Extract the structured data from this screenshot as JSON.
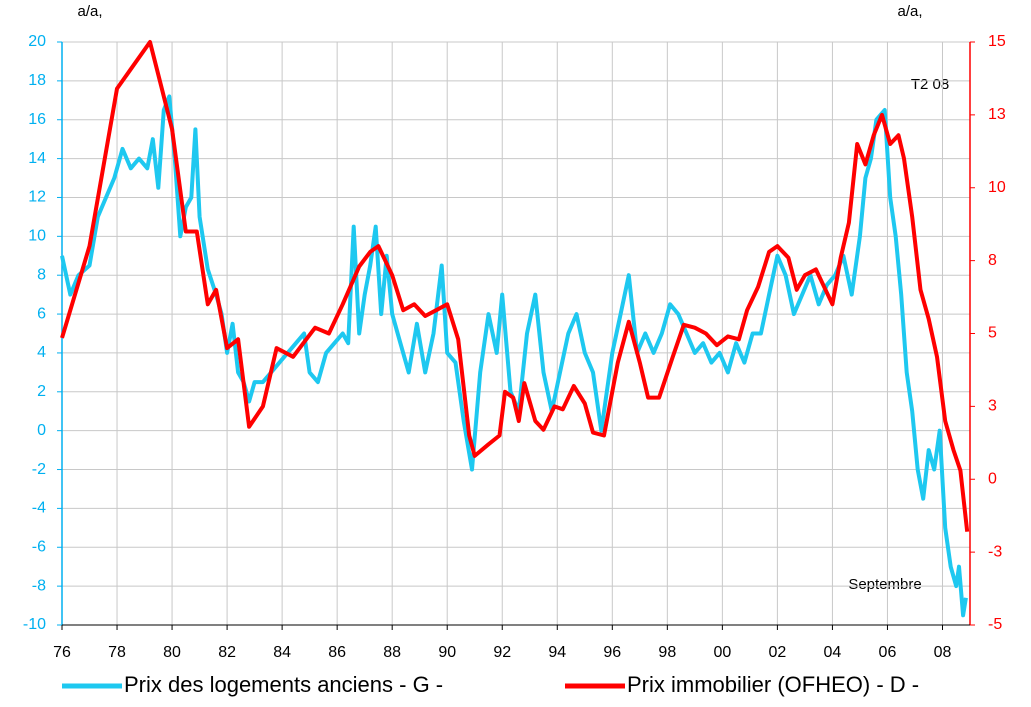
{
  "chart_data": {
    "type": "line",
    "annotations": [
      "a/a,",
      "a/a,",
      "T2 08",
      "Septembre"
    ],
    "xlim": [
      1976,
      2009
    ],
    "xticks": [
      {
        "value": 1976,
        "label": "76"
      },
      {
        "value": 1978,
        "label": "78"
      },
      {
        "value": 1980,
        "label": "80"
      },
      {
        "value": 1982,
        "label": "82"
      },
      {
        "value": 1984,
        "label": "84"
      },
      {
        "value": 1986,
        "label": "86"
      },
      {
        "value": 1988,
        "label": "88"
      },
      {
        "value": 1990,
        "label": "90"
      },
      {
        "value": 1992,
        "label": "92"
      },
      {
        "value": 1994,
        "label": "94"
      },
      {
        "value": 1996,
        "label": "96"
      },
      {
        "value": 1998,
        "label": "98"
      },
      {
        "value": 2000,
        "label": "00"
      },
      {
        "value": 2002,
        "label": "02"
      },
      {
        "value": 2004,
        "label": "04"
      },
      {
        "value": 2006,
        "label": "06"
      },
      {
        "value": 2008,
        "label": "08"
      }
    ],
    "ylim": [
      -10,
      20
    ],
    "yticks": [
      -10,
      -8,
      -6,
      -4,
      -2,
      0,
      2,
      4,
      6,
      8,
      10,
      12,
      14,
      16,
      18,
      20
    ],
    "y2lim": [
      -5,
      15
    ],
    "y2ticks": [
      -5,
      {
        "value": -2.5,
        "label": "-3"
      },
      0,
      {
        "value": 2.5,
        "label": "3"
      },
      5,
      {
        "value": 7.5,
        "label": "8"
      },
      10,
      {
        "value": 12.5,
        "label": "13"
      },
      15
    ],
    "grid": true,
    "legend": "bottom",
    "series": [
      {
        "name": "Prix des logements anciens - G -",
        "color": "#1ec8f0",
        "axis": "y",
        "x": [
          1976.0,
          1976.3,
          1976.6,
          1977.0,
          1977.3,
          1977.6,
          1977.9,
          1978.2,
          1978.5,
          1978.8,
          1979.1,
          1979.3,
          1979.5,
          1979.7,
          1979.9,
          1980.1,
          1980.3,
          1980.5,
          1980.7,
          1980.85,
          1981.0,
          1981.3,
          1981.6,
          1981.8,
          1982.0,
          1982.2,
          1982.4,
          1982.6,
          1982.8,
          1983.0,
          1983.3,
          1983.6,
          1983.9,
          1984.2,
          1984.5,
          1984.8,
          1985.0,
          1985.3,
          1985.6,
          1985.9,
          1986.2,
          1986.4,
          1986.6,
          1986.8,
          1987.0,
          1987.2,
          1987.4,
          1987.6,
          1987.8,
          1988.0,
          1988.3,
          1988.6,
          1988.9,
          1989.2,
          1989.5,
          1989.8,
          1990.0,
          1990.3,
          1990.6,
          1990.9,
          1991.2,
          1991.5,
          1991.8,
          1992.0,
          1992.3,
          1992.6,
          1992.9,
          1993.2,
          1993.5,
          1993.8,
          1994.1,
          1994.4,
          1994.7,
          1995.0,
          1995.3,
          1995.6,
          1996.0,
          1996.3,
          1996.6,
          1996.9,
          1997.2,
          1997.5,
          1997.8,
          1998.1,
          1998.4,
          1998.7,
          1999.0,
          1999.3,
          1999.6,
          1999.9,
          2000.2,
          2000.5,
          2000.8,
          2001.1,
          2001.4,
          2001.7,
          2002.0,
          2002.3,
          2002.6,
          2002.9,
          2003.2,
          2003.5,
          2003.8,
          2004.1,
          2004.4,
          2004.7,
          2005.0,
          2005.2,
          2005.4,
          2005.6,
          2005.9,
          2006.1,
          2006.3,
          2006.5,
          2006.7,
          2006.9,
          2007.1,
          2007.3,
          2007.5,
          2007.7,
          2007.9,
          2008.1,
          2008.3,
          2008.5,
          2008.6,
          2008.75,
          2008.85
        ],
        "values": [
          9,
          7,
          8,
          8.5,
          11,
          12,
          13,
          14.5,
          13.5,
          14,
          13.5,
          15,
          12.5,
          16.5,
          17.2,
          14,
          10,
          11.5,
          12,
          15.5,
          11,
          8.3,
          7,
          6,
          4,
          5.5,
          3,
          2.5,
          1.5,
          2.5,
          2.5,
          3,
          3.5,
          4,
          4.5,
          5,
          3,
          2.5,
          4,
          4.5,
          5,
          4.5,
          10.5,
          5,
          7,
          8.5,
          10.5,
          6,
          9,
          6,
          4.5,
          3,
          5.5,
          3,
          5,
          8.5,
          4,
          3.5,
          0.5,
          -2,
          3,
          6,
          4,
          7,
          2,
          1,
          5,
          7,
          3,
          1,
          3,
          5,
          6,
          4,
          3,
          0,
          4,
          6,
          8,
          4,
          5,
          4,
          5,
          6.5,
          6,
          5,
          4,
          4.5,
          3.5,
          4,
          3,
          4.5,
          3.5,
          5,
          5,
          7,
          9,
          8,
          6,
          7,
          8,
          6.5,
          7.5,
          8,
          9,
          7,
          10,
          13,
          14,
          16,
          16.5,
          12,
          10,
          7,
          3,
          1,
          -2,
          -3.5,
          -1,
          -2,
          0,
          -5,
          -7,
          -8,
          -7,
          -9.5,
          -8.6
        ]
      },
      {
        "name": "Prix immobilier (OFHEO) - D -",
        "color": "#ff0000",
        "axis": "y2",
        "x": [
          1976.0,
          1977.0,
          1978.0,
          1979.2,
          1979.6,
          1980.0,
          1980.5,
          1980.9,
          1981.3,
          1981.6,
          1982.0,
          1982.4,
          1982.8,
          1983.3,
          1983.8,
          1984.4,
          1984.8,
          1985.2,
          1985.7,
          1986.2,
          1986.8,
          1987.2,
          1987.5,
          1988.0,
          1988.4,
          1988.8,
          1989.2,
          1989.6,
          1990.0,
          1990.4,
          1990.8,
          1991.0,
          1991.5,
          1991.9,
          1992.1,
          1992.4,
          1992.6,
          1992.8,
          1993.2,
          1993.5,
          1993.9,
          1994.2,
          1994.6,
          1995.0,
          1995.3,
          1995.7,
          1996.2,
          1996.6,
          1997.0,
          1997.3,
          1997.7,
          1998.2,
          1998.6,
          1999.0,
          1999.4,
          1999.8,
          2000.2,
          2000.6,
          2000.9,
          2001.3,
          2001.7,
          2002.0,
          2002.4,
          2002.7,
          2003.0,
          2003.4,
          2003.8,
          2004.0,
          2004.3,
          2004.6,
          2004.9,
          2005.2,
          2005.5,
          2005.8,
          2006.1,
          2006.4,
          2006.6,
          2006.9,
          2007.2,
          2007.5,
          2007.8,
          2008.1,
          2008.4,
          2008.65,
          2008.9
        ],
        "values": [
          4.85,
          8.0,
          13.4,
          15,
          13.5,
          12,
          8.5,
          8.5,
          6,
          6.5,
          4.5,
          4.8,
          1.8,
          2.5,
          4.5,
          4.2,
          4.7,
          5.2,
          5.0,
          6.0,
          7.3,
          7.8,
          8.0,
          7.0,
          5.8,
          6.0,
          5.6,
          5.8,
          6.0,
          4.8,
          1.5,
          0.8,
          1.2,
          1.5,
          3.0,
          2.8,
          2.0,
          3.3,
          2.0,
          1.7,
          2.5,
          2.4,
          3.2,
          2.6,
          1.6,
          1.5,
          4.0,
          5.4,
          4.0,
          2.8,
          2.8,
          4.2,
          5.3,
          5.2,
          5.0,
          4.6,
          4.9,
          4.8,
          5.8,
          6.6,
          7.8,
          8.0,
          7.6,
          6.5,
          7.0,
          7.2,
          6.4,
          6.0,
          7.6,
          8.8,
          11.5,
          10.8,
          11.8,
          12.5,
          11.5,
          11.8,
          11.0,
          9.0,
          6.5,
          5.5,
          4.2,
          2.0,
          1.0,
          0.3,
          -1.8
        ]
      }
    ]
  }
}
